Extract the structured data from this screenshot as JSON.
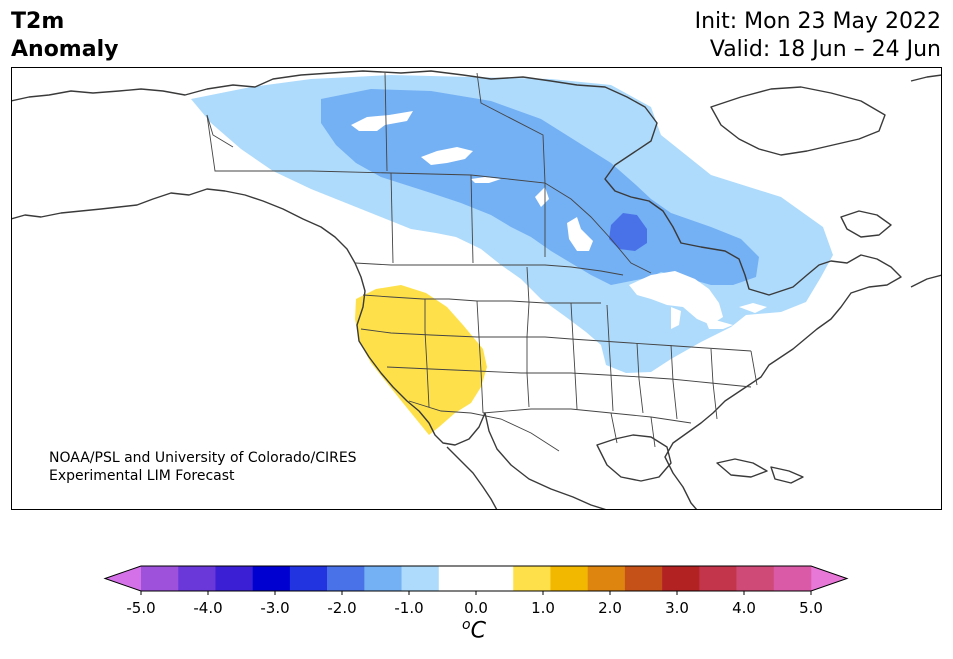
{
  "header": {
    "title_line1": "T2m",
    "title_line2": "Anomaly",
    "init_line": "Init: Mon 23 May 2022",
    "valid_line": "Valid: 18 Jun – 24 Jun"
  },
  "credit": {
    "line1": "NOAA/PSL and University of Colorado/CIRES",
    "line2": "Experimental LIM Forecast"
  },
  "colorbar": {
    "min": -5.0,
    "max": 5.0,
    "step": 0.5,
    "tick_labels": [
      "-5.0",
      "-4.0",
      "-3.0",
      "-2.0",
      "-1.0",
      "0.0",
      "1.0",
      "2.0",
      "3.0",
      "4.0",
      "5.0"
    ],
    "tick_values": [
      -5,
      -4,
      -3,
      -2,
      -1,
      0,
      1,
      2,
      3,
      4,
      5
    ],
    "colors": [
      "#d470e8",
      "#9e52dc",
      "#6a38d9",
      "#3a1fd4",
      "#0000d0",
      "#2233e0",
      "#4a72e8",
      "#74b0f4",
      "#aedbfc",
      "#ffffff",
      "#ffffff",
      "#fee14a",
      "#f2b800",
      "#de8510",
      "#c55018",
      "#b22222",
      "#c3354a",
      "#d04a78",
      "#da5aa8",
      "#e878d8"
    ],
    "unit_prefix": "o",
    "unit_symbol": "C"
  },
  "map_legend": {
    "light_blue": "#aedbfc",
    "mid_blue": "#74b0f4",
    "deep_blue": "#4a72e8",
    "yellow": "#fee14a",
    "coast": "#3a3a3a"
  }
}
